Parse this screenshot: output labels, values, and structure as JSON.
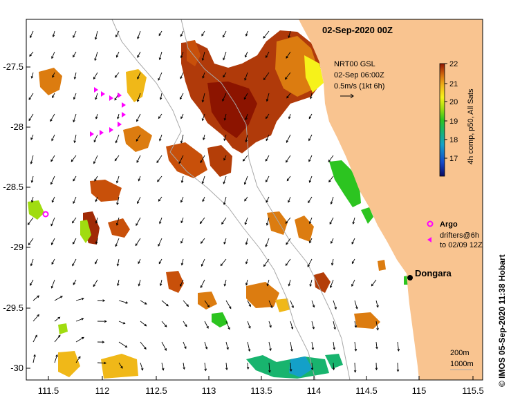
{
  "title": "02-Sep-2020 00Z",
  "current_legend": {
    "line1": "NRT00 GSL",
    "line2": "02-Sep 06:00Z",
    "line3": "0.5m/s (1kt 6h)"
  },
  "colorbar": {
    "label": "4h comp, p50, All Sats",
    "ticks": [
      "22",
      "21",
      "20",
      "19",
      "18",
      "17"
    ],
    "min": 16.5,
    "max": 22
  },
  "argo_legend": {
    "argo_label": "Argo",
    "drifters_line1": "drifters@6h",
    "drifters_line2": "to 02/09 12Z"
  },
  "place": {
    "name": "Dongara"
  },
  "depth_legend": {
    "line1": "200m",
    "line2": "1000m"
  },
  "credit": "© IMOS 05-Sep-2020 11:38 Hobart",
  "axes": {
    "x_ticks": [
      "111.5",
      "112",
      "112.5",
      "113",
      "113.5",
      "114",
      "114.5",
      "115",
      "115.5"
    ],
    "y_ticks": [
      "-27.5",
      "-28",
      "-28.5",
      "-29",
      "-29.5",
      "-30"
    ],
    "x_range": [
      111.3,
      115.6
    ],
    "y_range": [
      -30.1,
      -27.05
    ]
  },
  "colors": {
    "land": "#f9c490",
    "drifter": "#ff00ff",
    "sst_scale": [
      "#0a0a60",
      "#1446c8",
      "#14a0c8",
      "#18b46e",
      "#2cc420",
      "#a0dc10",
      "#f6f21a",
      "#f0b818",
      "#dc7c10",
      "#b43e08",
      "#8c1400"
    ]
  }
}
